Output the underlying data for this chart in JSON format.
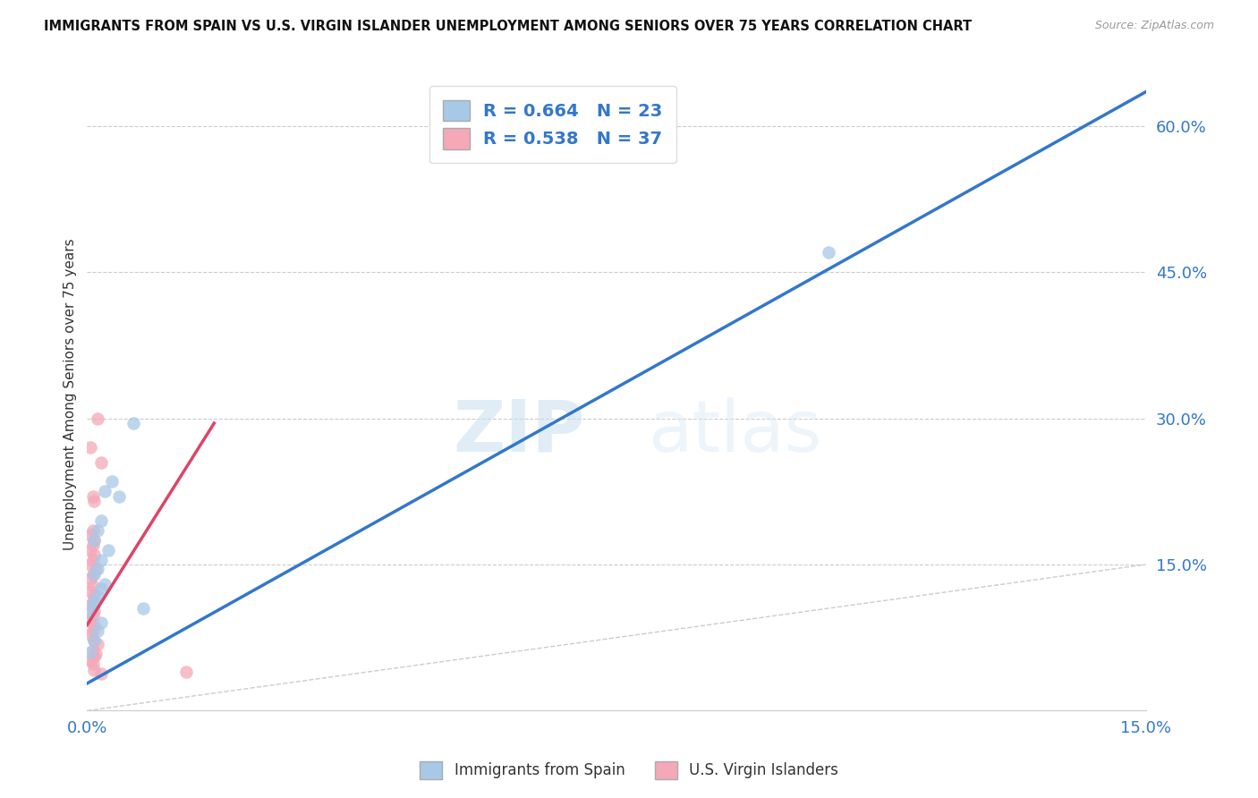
{
  "title": "IMMIGRANTS FROM SPAIN VS U.S. VIRGIN ISLANDER UNEMPLOYMENT AMONG SENIORS OVER 75 YEARS CORRELATION CHART",
  "source": "Source: ZipAtlas.com",
  "ylabel": "Unemployment Among Seniors over 75 years",
  "xlim": [
    0.0,
    0.15
  ],
  "ylim": [
    0.0,
    0.65
  ],
  "x_ticks": [
    0.0,
    0.025,
    0.05,
    0.075,
    0.1,
    0.125,
    0.15
  ],
  "x_tick_labels": [
    "0.0%",
    "",
    "",
    "",
    "",
    "",
    "15.0%"
  ],
  "y_ticks": [
    0.0,
    0.15,
    0.3,
    0.45,
    0.6
  ],
  "y_tick_labels": [
    "",
    "15.0%",
    "30.0%",
    "45.0%",
    "60.0%"
  ],
  "legend_r_blue": "0.664",
  "legend_n_blue": "23",
  "legend_r_pink": "0.538",
  "legend_n_pink": "37",
  "legend_label_blue": "Immigrants from Spain",
  "legend_label_pink": "U.S. Virgin Islanders",
  "blue_color": "#a8c8e8",
  "pink_color": "#f4a8b8",
  "blue_line_color": "#3377cc",
  "pink_line_color": "#dd4466",
  "diagonal_color": "#cccccc",
  "watermark_zip": "ZIP",
  "watermark_atlas": "atlas",
  "blue_scatter_x": [
    0.0065,
    0.0035,
    0.0025,
    0.0045,
    0.002,
    0.0015,
    0.001,
    0.003,
    0.002,
    0.0015,
    0.001,
    0.0025,
    0.002,
    0.0015,
    0.001,
    0.0008,
    0.0005,
    0.002,
    0.0015,
    0.001,
    0.0005,
    0.105,
    0.008
  ],
  "blue_scatter_y": [
    0.295,
    0.235,
    0.225,
    0.22,
    0.195,
    0.185,
    0.175,
    0.165,
    0.155,
    0.145,
    0.14,
    0.13,
    0.125,
    0.118,
    0.112,
    0.108,
    0.1,
    0.09,
    0.082,
    0.072,
    0.06,
    0.47,
    0.105
  ],
  "pink_scatter_x": [
    0.0005,
    0.0008,
    0.001,
    0.0015,
    0.0008,
    0.0005,
    0.001,
    0.0008,
    0.0005,
    0.001,
    0.0008,
    0.0005,
    0.0012,
    0.0008,
    0.0005,
    0.0008,
    0.0005,
    0.001,
    0.0008,
    0.0005,
    0.001,
    0.0008,
    0.0005,
    0.001,
    0.0008,
    0.0005,
    0.001,
    0.0015,
    0.0008,
    0.0012,
    0.0005,
    0.0008,
    0.001,
    0.002,
    0.014,
    0.002,
    0.001
  ],
  "pink_scatter_y": [
    0.27,
    0.22,
    0.215,
    0.3,
    0.185,
    0.18,
    0.175,
    0.17,
    0.165,
    0.16,
    0.155,
    0.15,
    0.145,
    0.14,
    0.135,
    0.128,
    0.122,
    0.118,
    0.112,
    0.108,
    0.102,
    0.098,
    0.092,
    0.088,
    0.082,
    0.078,
    0.072,
    0.068,
    0.062,
    0.058,
    0.052,
    0.048,
    0.042,
    0.038,
    0.04,
    0.255,
    0.055
  ],
  "blue_line_x": [
    0.0,
    0.15
  ],
  "blue_line_y": [
    0.028,
    0.635
  ],
  "pink_line_x": [
    0.0,
    0.018
  ],
  "pink_line_y": [
    0.088,
    0.295
  ]
}
